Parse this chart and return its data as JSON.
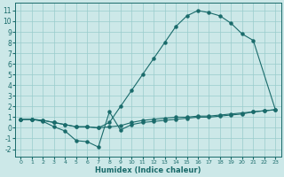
{
  "xlabel": "Humidex (Indice chaleur)",
  "bg_color": "#cce8e8",
  "grid_color": "#99cccc",
  "line_color": "#1a6b6b",
  "xlim": [
    -0.5,
    23.5
  ],
  "ylim": [
    -2.7,
    11.7
  ],
  "xticks": [
    0,
    1,
    2,
    3,
    4,
    5,
    6,
    7,
    8,
    9,
    10,
    11,
    12,
    13,
    14,
    15,
    16,
    17,
    18,
    19,
    20,
    21,
    22,
    23
  ],
  "yticks": [
    -2,
    -1,
    0,
    1,
    2,
    3,
    4,
    5,
    6,
    7,
    8,
    9,
    10,
    11
  ],
  "line_flat_x": [
    0,
    1,
    2,
    3,
    4,
    5,
    6,
    7,
    8,
    9,
    10,
    11,
    12,
    13,
    14,
    15,
    16,
    17,
    18,
    19,
    20,
    21,
    22,
    23
  ],
  "line_flat_y": [
    0.8,
    0.8,
    0.7,
    0.5,
    0.3,
    0.1,
    0.1,
    0.0,
    0.1,
    0.2,
    0.5,
    0.7,
    0.8,
    0.9,
    1.0,
    1.0,
    1.1,
    1.1,
    1.2,
    1.3,
    1.4,
    1.5,
    1.6,
    1.7
  ],
  "line_curve_x": [
    0,
    1,
    2,
    3,
    4,
    5,
    6,
    7,
    8,
    9,
    10,
    11,
    12,
    13,
    14,
    15,
    16,
    17,
    18,
    19,
    20,
    21
  ],
  "line_curve_y": [
    0.8,
    0.8,
    0.7,
    0.5,
    0.3,
    0.1,
    0.1,
    0.0,
    0.5,
    2.0,
    3.5,
    5.0,
    6.5,
    8.0,
    9.5,
    10.5,
    11.0,
    10.8,
    10.5,
    9.8,
    8.8,
    8.2
  ],
  "line_dip_x": [
    0,
    1,
    2,
    3,
    4,
    5,
    6,
    7,
    8,
    9,
    10,
    11,
    12,
    13,
    14,
    15,
    16,
    17,
    18,
    19,
    20,
    21,
    22,
    23
  ],
  "line_dip_y": [
    0.8,
    0.8,
    0.6,
    0.1,
    -0.3,
    -1.2,
    -1.3,
    -1.8,
    1.5,
    -0.2,
    0.3,
    0.5,
    0.6,
    0.7,
    0.8,
    0.9,
    1.0,
    1.0,
    1.1,
    1.2,
    1.3,
    1.5,
    1.6,
    1.7
  ],
  "closing_line_x": [
    21,
    23
  ],
  "closing_line_y": [
    8.2,
    1.7
  ]
}
